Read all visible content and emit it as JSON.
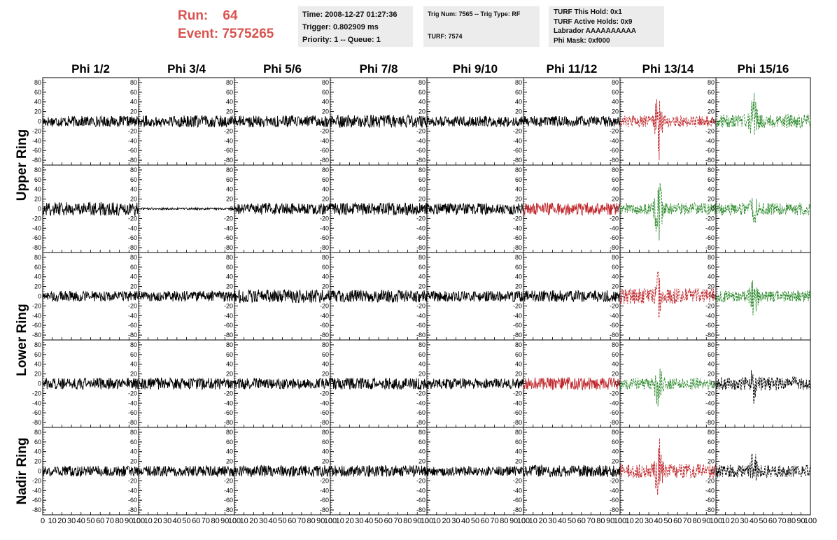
{
  "header": {
    "run_label": "Run:",
    "run_value": "64",
    "event_label": "Event:",
    "event_value": "7575265",
    "time_line": "Time: 2008-12-27 01:27:36",
    "trigger_line": "Trigger: 0.802909 ms",
    "priority_line": "Priority: 1 -- Queue: 1",
    "trig_line": "Trig Num: 7565 -- Trig Type: RF",
    "turf_line": "TURF: 7574",
    "turf_hold_line": "TURF This Hold: 0x1",
    "turf_active_line": "TURF Active Holds: 0x9",
    "labrador_line": "Labrador AAAAAAAAAA",
    "phi_mask_line": "Phi Mask: 0xf000"
  },
  "chart_data": {
    "type": "line",
    "title": "",
    "columns": [
      "Phi 1/2",
      "Phi 3/4",
      "Phi 5/6",
      "Phi 7/8",
      "Phi 9/10",
      "Phi 11/12",
      "Phi 13/14",
      "Phi 15/16"
    ],
    "rows": [
      "Upper Ring",
      "Upper Ring",
      "Lower Ring",
      "Lower Ring",
      "Nadir Ring"
    ],
    "ring_labels": [
      {
        "label": "Upper Ring",
        "rows": [
          0,
          1
        ]
      },
      {
        "label": "Lower Ring",
        "rows": [
          2,
          3
        ]
      },
      {
        "label": "Nadir Ring",
        "rows": [
          4
        ]
      }
    ],
    "ylim": [
      -90,
      90
    ],
    "yticks": [
      -80,
      -60,
      -40,
      -20,
      0,
      20,
      40,
      60,
      80
    ],
    "ytick_labels": [
      "-80",
      "-60",
      "-40",
      "-20",
      "0",
      "20",
      "40",
      "60",
      "80"
    ],
    "xlim": [
      0,
      100
    ],
    "xticks": [
      0,
      10,
      20,
      30,
      40,
      50,
      60,
      70,
      80,
      90,
      100
    ],
    "xtick_labels": [
      "0",
      "10",
      "20",
      "30",
      "40",
      "50",
      "60",
      "70",
      "80",
      "90",
      "100"
    ],
    "colors": {
      "black": "#000000",
      "red": "#c0282d",
      "green": "#2e8b2e"
    },
    "panels": [
      {
        "row": 0,
        "col": 0,
        "color": "black",
        "style": "solid",
        "amp": 11,
        "burst": 0
      },
      {
        "row": 0,
        "col": 1,
        "color": "black",
        "style": "solid",
        "amp": 12,
        "burst": 0
      },
      {
        "row": 0,
        "col": 2,
        "color": "black",
        "style": "solid",
        "amp": 12,
        "burst": 0
      },
      {
        "row": 0,
        "col": 3,
        "color": "black",
        "style": "solid",
        "amp": 13,
        "burst": 0
      },
      {
        "row": 0,
        "col": 4,
        "color": "black",
        "style": "solid",
        "amp": 11,
        "burst": 0
      },
      {
        "row": 0,
        "col": 5,
        "color": "black",
        "style": "solid",
        "amp": 11,
        "burst": 0
      },
      {
        "row": 0,
        "col": 6,
        "color": "red",
        "style": "dashed",
        "amp": 12,
        "burst": 75
      },
      {
        "row": 0,
        "col": 7,
        "color": "green",
        "style": "dashed",
        "amp": 14,
        "burst": 50
      },
      {
        "row": 1,
        "col": 0,
        "color": "black",
        "style": "solid",
        "amp": 14,
        "burst": 0
      },
      {
        "row": 1,
        "col": 1,
        "color": "black",
        "style": "solid",
        "amp": 2,
        "burst": 0
      },
      {
        "row": 1,
        "col": 2,
        "color": "black",
        "style": "solid",
        "amp": 12,
        "burst": 0
      },
      {
        "row": 1,
        "col": 3,
        "color": "black",
        "style": "solid",
        "amp": 13,
        "burst": 0
      },
      {
        "row": 1,
        "col": 4,
        "color": "black",
        "style": "solid",
        "amp": 12,
        "burst": 0
      },
      {
        "row": 1,
        "col": 5,
        "color": "red",
        "style": "solid",
        "amp": 13,
        "burst": 0
      },
      {
        "row": 1,
        "col": 6,
        "color": "green",
        "style": "dashed",
        "amp": 12,
        "burst": 75
      },
      {
        "row": 1,
        "col": 7,
        "color": "green",
        "style": "dashed",
        "amp": 13,
        "burst": 30
      },
      {
        "row": 2,
        "col": 0,
        "color": "black",
        "style": "solid",
        "amp": 11,
        "burst": 0
      },
      {
        "row": 2,
        "col": 1,
        "color": "black",
        "style": "solid",
        "amp": 11,
        "burst": 0
      },
      {
        "row": 2,
        "col": 2,
        "color": "black",
        "style": "solid",
        "amp": 14,
        "burst": 0
      },
      {
        "row": 2,
        "col": 3,
        "color": "black",
        "style": "solid",
        "amp": 13,
        "burst": 0
      },
      {
        "row": 2,
        "col": 4,
        "color": "black",
        "style": "solid",
        "amp": 11,
        "burst": 0
      },
      {
        "row": 2,
        "col": 5,
        "color": "black",
        "style": "solid",
        "amp": 12,
        "burst": 0
      },
      {
        "row": 2,
        "col": 6,
        "color": "red",
        "style": "dashed",
        "amp": 16,
        "burst": 55
      },
      {
        "row": 2,
        "col": 7,
        "color": "green",
        "style": "dashed",
        "amp": 12,
        "burst": 40
      },
      {
        "row": 3,
        "col": 0,
        "color": "black",
        "style": "solid",
        "amp": 12,
        "burst": 0
      },
      {
        "row": 3,
        "col": 1,
        "color": "black",
        "style": "solid",
        "amp": 12,
        "burst": 0
      },
      {
        "row": 3,
        "col": 2,
        "color": "black",
        "style": "solid",
        "amp": 11,
        "burst": 0
      },
      {
        "row": 3,
        "col": 3,
        "color": "black",
        "style": "solid",
        "amp": 12,
        "burst": 0
      },
      {
        "row": 3,
        "col": 4,
        "color": "black",
        "style": "solid",
        "amp": 11,
        "burst": 0
      },
      {
        "row": 3,
        "col": 5,
        "color": "red",
        "style": "solid",
        "amp": 13,
        "burst": 0
      },
      {
        "row": 3,
        "col": 6,
        "color": "green",
        "style": "dashed",
        "amp": 12,
        "burst": 55
      },
      {
        "row": 3,
        "col": 7,
        "color": "black",
        "style": "dashed",
        "amp": 14,
        "burst": 30
      },
      {
        "row": 4,
        "col": 0,
        "color": "black",
        "style": "solid",
        "amp": 11,
        "burst": 0
      },
      {
        "row": 4,
        "col": 1,
        "color": "black",
        "style": "solid",
        "amp": 11,
        "burst": 0
      },
      {
        "row": 4,
        "col": 2,
        "color": "black",
        "style": "solid",
        "amp": 12,
        "burst": 0
      },
      {
        "row": 4,
        "col": 3,
        "color": "black",
        "style": "solid",
        "amp": 12,
        "burst": 0
      },
      {
        "row": 4,
        "col": 4,
        "color": "black",
        "style": "solid",
        "amp": 10,
        "burst": 0
      },
      {
        "row": 4,
        "col": 5,
        "color": "black",
        "style": "solid",
        "amp": 12,
        "burst": 0
      },
      {
        "row": 4,
        "col": 6,
        "color": "red",
        "style": "dashed",
        "amp": 15,
        "burst": 75
      },
      {
        "row": 4,
        "col": 7,
        "color": "black",
        "style": "dashed",
        "amp": 13,
        "burst": 40
      }
    ]
  }
}
